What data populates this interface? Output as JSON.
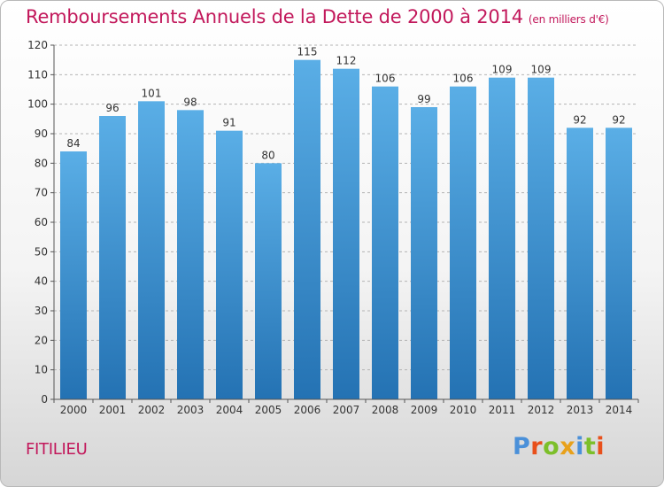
{
  "title": "Remboursements Annuels de la Dette de 2000 à 2014",
  "subtitle": "(en milliers d'€)",
  "town": "FITILIEU",
  "logo": {
    "text": "Proxiti",
    "letter_colors": [
      "#4a90d9",
      "#e8501b",
      "#7cbf2a",
      "#e8a11b",
      "#4a90d9",
      "#7cbf2a",
      "#e8501b"
    ]
  },
  "colors": {
    "bar_top": "#5aaee6",
    "bar_bottom": "#2472b3",
    "accent": "#c2185b",
    "grid": "#b4b4b4",
    "axis_text": "#333333"
  },
  "chart_data": {
    "type": "bar",
    "categories": [
      "2000",
      "2001",
      "2002",
      "2003",
      "2004",
      "2005",
      "2006",
      "2007",
      "2008",
      "2009",
      "2010",
      "2011",
      "2012",
      "2013",
      "2014"
    ],
    "values": [
      84,
      96,
      101,
      98,
      91,
      80,
      115,
      112,
      106,
      99,
      106,
      109,
      109,
      92,
      92
    ],
    "data_labels": [
      "84",
      "96",
      "101",
      "98",
      "91",
      "80",
      "115",
      "112",
      "106",
      "99",
      "106",
      "109",
      "109",
      "92",
      "92"
    ],
    "title": "Remboursements Annuels de la Dette de 2000 à 2014",
    "subtitle": "(en milliers d'€)",
    "xlabel": "",
    "ylabel": "",
    "ylim": [
      0,
      120
    ],
    "yticks": [
      0,
      10,
      20,
      30,
      40,
      50,
      60,
      70,
      80,
      90,
      100,
      110,
      120
    ],
    "grid": true,
    "legend": "none"
  }
}
